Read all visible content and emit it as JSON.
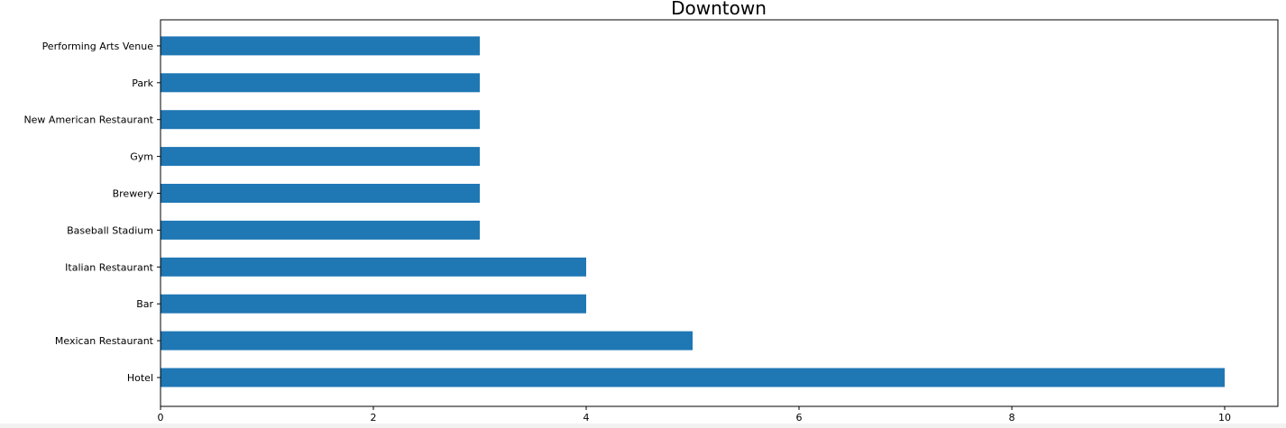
{
  "chart_data": {
    "type": "bar",
    "orientation": "horizontal",
    "title": "Downtown",
    "xlabel": "",
    "ylabel": "",
    "categories": [
      "Hotel",
      "Mexican Restaurant",
      "Bar",
      "Italian Restaurant",
      "Baseball Stadium",
      "Brewery",
      "Gym",
      "New American Restaurant",
      "Park",
      "Performing Arts Venue"
    ],
    "values": [
      10,
      5,
      4,
      4,
      3,
      3,
      3,
      3,
      3,
      3
    ],
    "xlim": [
      0,
      10.5
    ],
    "x_ticks": [
      0,
      2,
      4,
      6,
      8,
      10
    ],
    "bar_color": "#1f77b4",
    "grid": false,
    "legend": "none"
  }
}
